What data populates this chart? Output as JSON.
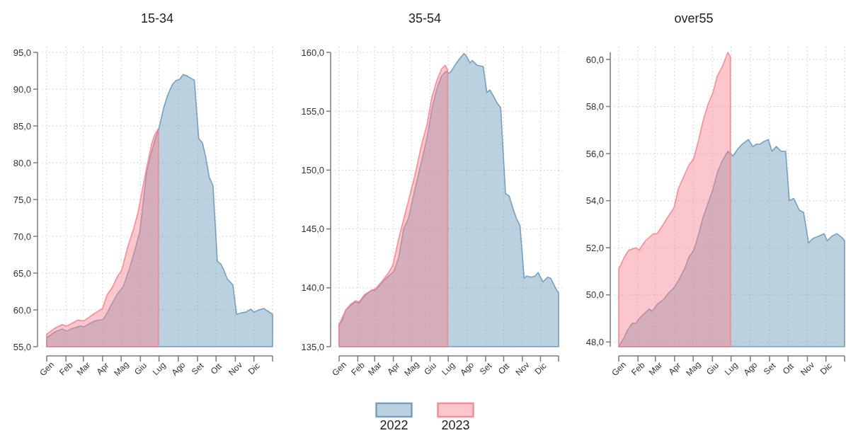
{
  "chart_data": [
    {
      "type": "area",
      "title": "15-34",
      "xlim": [
        "--01-01",
        "--12-31"
      ],
      "xticks": [
        {
          "value": "--01-01",
          "label": "Gen"
        },
        {
          "value": "--02-01",
          "label": "Feb"
        },
        {
          "value": "--03-01",
          "label": "Mar"
        },
        {
          "value": "--04-01",
          "label": "Apr"
        },
        {
          "value": "--05-01",
          "label": "Mag"
        },
        {
          "value": "--06-01",
          "label": "Giu"
        },
        {
          "value": "--07-01",
          "label": "Lug"
        },
        {
          "value": "--08-01",
          "label": "Ago"
        },
        {
          "value": "--09-01",
          "label": "Set"
        },
        {
          "value": "--10-01",
          "label": "Ott"
        },
        {
          "value": "--11-01",
          "label": "Nov"
        },
        {
          "value": "--12-01",
          "label": "Dic"
        },
        {
          "value": "--12-31",
          "label": null
        }
      ],
      "ylim": [
        55,
        95
      ],
      "yticks": [
        {
          "value": 55,
          "label": "55,0"
        },
        {
          "value": 60,
          "label": "60,0"
        },
        {
          "value": 65,
          "label": "65,0"
        },
        {
          "value": 70,
          "label": "70,0"
        },
        {
          "value": 75,
          "label": "75,0"
        },
        {
          "value": 80,
          "label": "80,0"
        },
        {
          "value": 85,
          "label": "85,0"
        },
        {
          "value": 90,
          "label": "90,0"
        },
        {
          "value": 95,
          "label": "95,0"
        }
      ],
      "grid": true,
      "series": [
        {
          "color": "#6a98bb",
          "x": [
            "--01-01",
            "--01-14",
            "--01-26",
            "--02-02",
            "--02-09",
            "--02-24",
            "--03-02",
            "--03-10",
            "--03-19",
            "--04-02",
            "--04-09",
            "--04-17",
            "--04-26",
            "--05-04",
            "--05-14",
            "--05-23",
            "--05-31",
            "--06-11",
            "--06-19",
            "--06-26",
            "--07-01",
            "--07-08",
            "--07-15",
            "--07-23",
            "--07-29",
            "--08-03",
            "--08-09",
            "--08-15",
            "--08-21",
            "--08-27",
            "--09-03",
            "--09-09",
            "--09-14",
            "--09-20",
            "--09-26",
            "--10-03",
            "--10-09",
            "--10-13",
            "--10-19",
            "--10-28",
            "--11-03",
            "--11-11",
            "--11-18",
            "--11-26",
            "--12-01",
            "--12-09",
            "--12-17",
            "--12-22",
            "--12-31"
          ],
          "values": [
            56.2,
            57.0,
            57.4,
            57.1,
            57.4,
            57.8,
            57.7,
            58.1,
            58.5,
            58.7,
            59.7,
            61.0,
            62.3,
            63.1,
            65.5,
            68.1,
            70.6,
            78.7,
            81.5,
            83.5,
            84.7,
            87.3,
            89.2,
            90.7,
            91.2,
            91.3,
            92.0,
            91.8,
            91.5,
            91.2,
            83.3,
            82.7,
            80.9,
            78.0,
            76.9,
            66.6,
            66.2,
            65.5,
            64.2,
            63.4,
            59.4,
            59.6,
            59.7,
            60.1,
            59.7,
            60.0,
            60.2,
            59.9,
            59.4
          ]
        },
        {
          "color": "#f7838e",
          "x": [
            "--01-01",
            "--01-14",
            "--01-26",
            "--02-02",
            "--02-09",
            "--02-20",
            "--03-02",
            "--03-15",
            "--04-01",
            "--04-08",
            "--04-17",
            "--04-26",
            "--05-02",
            "--05-11",
            "--05-21",
            "--05-28",
            "--06-03",
            "--06-11",
            "--06-19",
            "--06-24",
            "--06-30"
          ],
          "values": [
            56.7,
            57.5,
            58.0,
            57.8,
            58.1,
            58.6,
            58.5,
            59.3,
            60.2,
            62.0,
            63.1,
            64.7,
            65.4,
            68.4,
            71.0,
            73.2,
            75.8,
            79.3,
            82.5,
            83.8,
            84.6
          ]
        }
      ]
    },
    {
      "type": "area",
      "title": "35-54",
      "legend": "bottom",
      "xlim": [
        "--01-01",
        "--12-31"
      ],
      "xticks": [
        {
          "value": "--01-01",
          "label": "Gen"
        },
        {
          "value": "--02-01",
          "label": "Feb"
        },
        {
          "value": "--03-01",
          "label": "Mar"
        },
        {
          "value": "--04-01",
          "label": "Apr"
        },
        {
          "value": "--05-01",
          "label": "Mag"
        },
        {
          "value": "--06-01",
          "label": "Giu"
        },
        {
          "value": "--07-01",
          "label": "Lug"
        },
        {
          "value": "--08-01",
          "label": "Ago"
        },
        {
          "value": "--09-01",
          "label": "Set"
        },
        {
          "value": "--10-01",
          "label": "Ott"
        },
        {
          "value": "--11-01",
          "label": "Nov"
        },
        {
          "value": "--12-01",
          "label": "Dic"
        },
        {
          "value": "--12-31",
          "label": null
        }
      ],
      "ylim": [
        135,
        160
      ],
      "yticks": [
        {
          "value": 135,
          "label": "135,0"
        },
        {
          "value": 140,
          "label": "140,0"
        },
        {
          "value": 145,
          "label": "145,0"
        },
        {
          "value": 150,
          "label": "150,0"
        },
        {
          "value": 155,
          "label": "155,0"
        },
        {
          "value": 160,
          "label": "160,0"
        }
      ],
      "grid": true,
      "series": [
        {
          "name": "2022",
          "color": "#6a98bb",
          "x": [
            "--01-01",
            "--01-06",
            "--01-12",
            "--01-20",
            "--01-28",
            "--02-03",
            "--02-12",
            "--02-24",
            "--03-02",
            "--03-14",
            "--03-24",
            "--04-02",
            "--04-10",
            "--04-18",
            "--04-26",
            "--05-06",
            "--05-18",
            "--05-27",
            "--06-04",
            "--06-12",
            "--06-20",
            "--06-28",
            "--07-02",
            "--07-06",
            "--07-12",
            "--07-19",
            "--07-27",
            "--07-31",
            "--08-06",
            "--08-10",
            "--08-18",
            "--08-28",
            "--09-03",
            "--09-08",
            "--09-14",
            "--09-20",
            "--09-26",
            "--10-04",
            "--10-10",
            "--10-16",
            "--10-22",
            "--10-28",
            "--11-04",
            "--11-08",
            "--11-16",
            "--11-22",
            "--11-27",
            "--12-05",
            "--12-13",
            "--12-18",
            "--12-23",
            "--12-29",
            "--12-31"
          ],
          "values": [
            136.9,
            137.2,
            138.1,
            138.5,
            138.8,
            138.7,
            139.3,
            139.8,
            139.8,
            140.5,
            141.0,
            141.4,
            142.6,
            145.0,
            145.9,
            148.2,
            150.8,
            152.8,
            155.2,
            156.9,
            158.0,
            158.4,
            158.2,
            158.4,
            158.9,
            159.4,
            159.9,
            159.7,
            159.1,
            159.3,
            158.9,
            158.8,
            156.6,
            156.8,
            156.3,
            155.7,
            155.3,
            148.0,
            147.8,
            146.8,
            145.9,
            145.3,
            140.8,
            141.0,
            140.9,
            141.0,
            141.3,
            140.5,
            140.9,
            140.8,
            140.3,
            139.7,
            139.6
          ]
        },
        {
          "name": "2023",
          "color": "#f7838e",
          "x": [
            "--01-01",
            "--01-12",
            "--01-20",
            "--01-28",
            "--02-03",
            "--02-12",
            "--02-24",
            "--03-02",
            "--03-14",
            "--03-24",
            "--03-31",
            "--04-10",
            "--04-18",
            "--04-26",
            "--05-06",
            "--05-18",
            "--05-27",
            "--06-04",
            "--06-12",
            "--06-20",
            "--06-26",
            "--06-30"
          ],
          "values": [
            136.9,
            138.1,
            138.6,
            138.9,
            138.8,
            139.4,
            139.8,
            139.9,
            140.6,
            141.3,
            141.9,
            144.2,
            145.8,
            147.4,
            149.4,
            152.2,
            153.9,
            156.2,
            157.6,
            158.6,
            158.9,
            158.5
          ]
        }
      ]
    },
    {
      "type": "area",
      "title": "over55",
      "xlim": [
        "--01-01",
        "--12-31"
      ],
      "xticks": [
        {
          "value": "--01-01",
          "label": "Gen"
        },
        {
          "value": "--02-01",
          "label": "Feb"
        },
        {
          "value": "--03-01",
          "label": "Mar"
        },
        {
          "value": "--04-01",
          "label": "Apr"
        },
        {
          "value": "--05-01",
          "label": "Mag"
        },
        {
          "value": "--06-01",
          "label": "Giu"
        },
        {
          "value": "--07-01",
          "label": "Lug"
        },
        {
          "value": "--08-01",
          "label": "Ago"
        },
        {
          "value": "--09-01",
          "label": "Set"
        },
        {
          "value": "--10-01",
          "label": "Ott"
        },
        {
          "value": "--11-01",
          "label": "Nov"
        },
        {
          "value": "--12-01",
          "label": "Dic"
        },
        {
          "value": "--12-31",
          "label": null
        }
      ],
      "ylim": [
        47.8,
        60.3
      ],
      "yticks": [
        {
          "value": 48,
          "label": "48,0"
        },
        {
          "value": 50,
          "label": "50,0"
        },
        {
          "value": 52,
          "label": "52,0"
        },
        {
          "value": 54,
          "label": "54,0"
        },
        {
          "value": 56,
          "label": "56,0"
        },
        {
          "value": 58,
          "label": "58,0"
        },
        {
          "value": 60,
          "label": "60,0"
        }
      ],
      "grid": true,
      "series": [
        {
          "color": "#6a98bb",
          "x": [
            "--01-01",
            "--01-10",
            "--01-15",
            "--01-23",
            "--01-29",
            "--02-03",
            "--02-11",
            "--02-19",
            "--02-24",
            "--03-04",
            "--03-14",
            "--03-23",
            "--03-31",
            "--04-07",
            "--04-17",
            "--04-24",
            "--05-02",
            "--05-10",
            "--05-17",
            "--05-25",
            "--06-02",
            "--06-09",
            "--06-17",
            "--06-26",
            "--07-04",
            "--07-12",
            "--07-19",
            "--07-29",
            "--08-05",
            "--08-11",
            "--08-17",
            "--08-22",
            "--08-30",
            "--09-05",
            "--09-12",
            "--09-20",
            "--09-27",
            "--10-03",
            "--10-10",
            "--10-19",
            "--10-26",
            "--11-03",
            "--11-10",
            "--11-20",
            "--11-28",
            "--12-03",
            "--12-11",
            "--12-19",
            "--12-28",
            "--12-31"
          ],
          "values": [
            47.8,
            48.2,
            48.5,
            48.8,
            48.8,
            49.0,
            49.2,
            49.4,
            49.3,
            49.6,
            49.8,
            50.1,
            50.3,
            50.6,
            51.1,
            51.6,
            51.9,
            52.6,
            53.3,
            53.9,
            54.5,
            55.2,
            55.7,
            56.1,
            55.9,
            56.2,
            56.4,
            56.6,
            56.3,
            56.4,
            56.4,
            56.5,
            56.6,
            56.1,
            56.3,
            56.1,
            56.1,
            54.0,
            54.1,
            53.6,
            53.5,
            52.2,
            52.4,
            52.5,
            52.6,
            52.3,
            52.5,
            52.6,
            52.4,
            52.3
          ]
        },
        {
          "color": "#f7838e",
          "x": [
            "--01-01",
            "--01-10",
            "--01-17",
            "--01-29",
            "--02-03",
            "--02-13",
            "--02-26",
            "--03-04",
            "--03-14",
            "--03-21",
            "--03-31",
            "--04-07",
            "--04-17",
            "--04-24",
            "--05-02",
            "--05-10",
            "--05-17",
            "--05-25",
            "--06-02",
            "--06-09",
            "--06-17",
            "--06-26",
            "--06-30"
          ],
          "values": [
            51.1,
            51.6,
            51.9,
            52.0,
            51.9,
            52.3,
            52.6,
            52.6,
            53.0,
            53.3,
            53.7,
            54.5,
            55.1,
            55.5,
            55.8,
            56.6,
            57.4,
            58.1,
            58.6,
            59.3,
            59.7,
            60.3,
            60.1
          ]
        }
      ]
    }
  ]
}
